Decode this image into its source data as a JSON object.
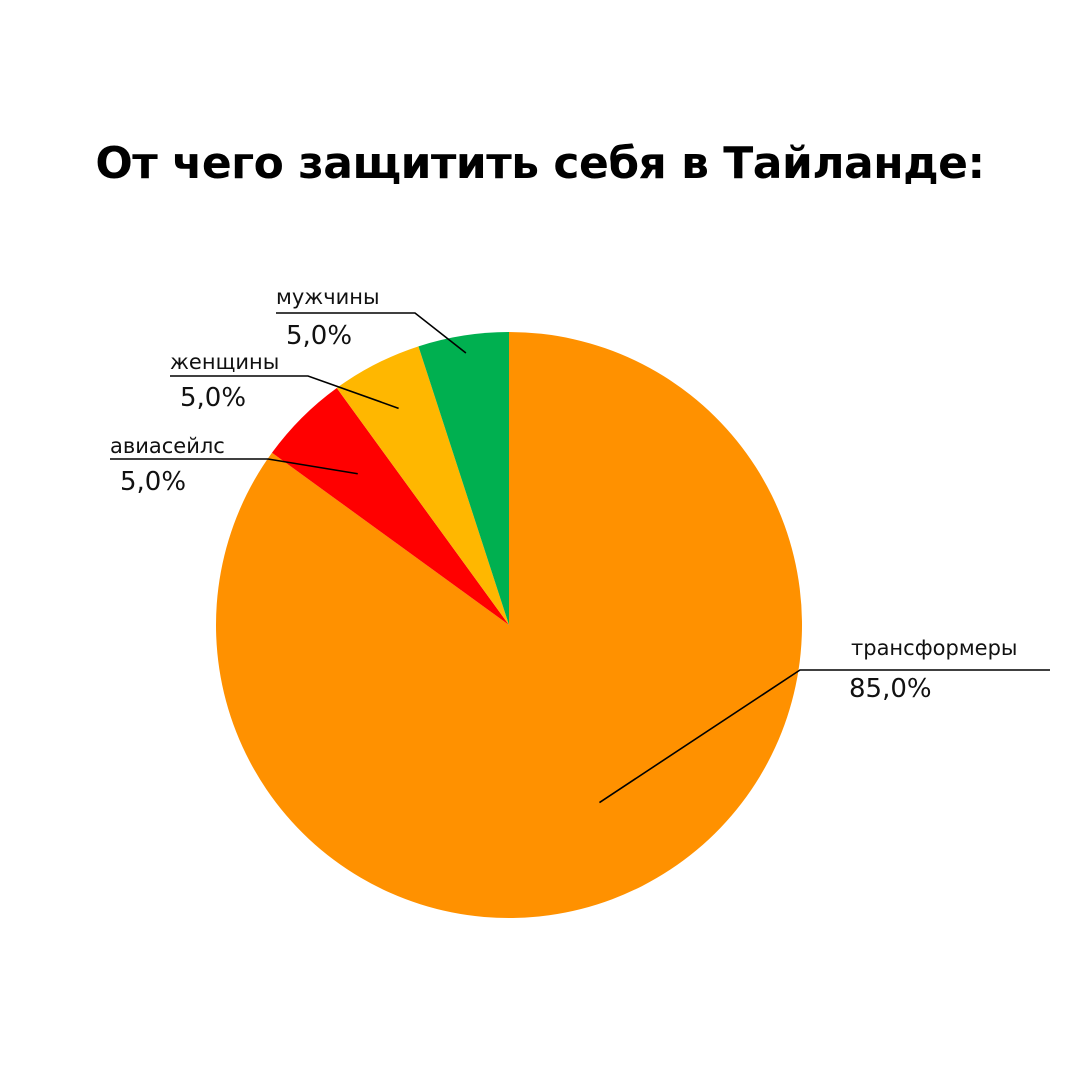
{
  "chart_data": {
    "type": "pie",
    "title": "От чего защитить себя в Тайланде:",
    "categories": [
      "трансформеры",
      "авиасейлс",
      "женщины",
      "мужчины"
    ],
    "values": [
      85.0,
      5.0,
      5.0,
      5.0
    ],
    "value_labels": [
      "85,0%",
      "5,0%",
      "5,0%",
      "5,0%"
    ],
    "colors": [
      "#ff9100",
      "#ff0000",
      "#ffb700",
      "#00b050"
    ],
    "start_angle_deg": 0,
    "direction": "clockwise",
    "legend": "none"
  }
}
